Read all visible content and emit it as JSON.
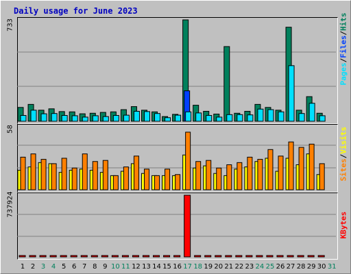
{
  "title": "Daily usage for June 2023",
  "colors": {
    "background": "#c0c0c0",
    "hits": "#00805c",
    "files": "#0040ff",
    "pages": "#00e0ff",
    "visits": "#ffff00",
    "sites": "#ff8000",
    "kbytes": "#ff0000",
    "weekend_day_label": "#00805c",
    "title": "#0000c0"
  },
  "legend": {
    "top": [
      "Pages",
      "/",
      "Files",
      "/",
      "Hits"
    ],
    "middle": [
      "Sites",
      "/",
      "Visits"
    ],
    "bottom": [
      "KBytes"
    ]
  },
  "chart_data": [
    {
      "type": "bar",
      "panel": "hits-files-pages",
      "y_max_label": "733",
      "ylim": [
        0,
        733
      ],
      "grid": true,
      "categories": [
        "1",
        "2",
        "3",
        "4",
        "5",
        "6",
        "7",
        "8",
        "9",
        "10",
        "11",
        "12",
        "13",
        "14",
        "15",
        "16",
        "17",
        "18",
        "19",
        "20",
        "21",
        "22",
        "23",
        "24",
        "25",
        "26",
        "27",
        "28",
        "29",
        "30",
        "31"
      ],
      "weekend_days": [
        "3",
        "4",
        "10",
        "11",
        "17",
        "18",
        "24",
        "25",
        "31"
      ],
      "series": [
        {
          "name": "Hits",
          "values": [
            100,
            122,
            80,
            90,
            70,
            68,
            54,
            58,
            64,
            68,
            84,
            106,
            80,
            68,
            34,
            50,
            733,
            116,
            72,
            52,
            540,
            58,
            72,
            122,
            100,
            80,
            680,
            80,
            178,
            58,
            0
          ]
        },
        {
          "name": "Files",
          "values": [
            0,
            0,
            0,
            0,
            0,
            0,
            0,
            0,
            0,
            0,
            0,
            0,
            0,
            0,
            0,
            0,
            220,
            0,
            0,
            0,
            0,
            0,
            0,
            0,
            0,
            0,
            0,
            0,
            0,
            0,
            0
          ]
        },
        {
          "name": "Pages",
          "values": [
            42,
            80,
            54,
            56,
            42,
            40,
            30,
            40,
            34,
            42,
            44,
            72,
            70,
            56,
            26,
            44,
            68,
            60,
            42,
            30,
            48,
            48,
            46,
            88,
            84,
            68,
            402,
            56,
            130,
            40,
            0
          ]
        }
      ]
    },
    {
      "type": "bar",
      "panel": "sites-visits",
      "y_max_label": "58",
      "ylim": [
        0,
        58
      ],
      "grid": true,
      "categories": [
        "1",
        "2",
        "3",
        "4",
        "5",
        "6",
        "7",
        "8",
        "9",
        "10",
        "11",
        "12",
        "13",
        "14",
        "15",
        "16",
        "17",
        "18",
        "19",
        "20",
        "21",
        "22",
        "23",
        "24",
        "25",
        "26",
        "27",
        "28",
        "29",
        "30",
        "31"
      ],
      "series": [
        {
          "name": "Visits",
          "values": [
            18,
            21,
            25,
            24,
            16,
            18,
            19,
            18,
            16,
            13,
            17,
            24,
            15,
            13,
            13,
            13,
            32,
            20,
            22,
            15,
            13,
            19,
            21,
            26,
            29,
            17,
            29,
            23,
            33,
            14,
            0
          ]
        },
        {
          "name": "Sites",
          "values": [
            30,
            33,
            28,
            24,
            29,
            20,
            33,
            26,
            27,
            13,
            21,
            31,
            19,
            13,
            19,
            14,
            53,
            26,
            27,
            20,
            23,
            25,
            30,
            28,
            37,
            31,
            44,
            39,
            42,
            24,
            0
          ]
        }
      ]
    },
    {
      "type": "bar",
      "panel": "kbytes",
      "y_max_label": "737924",
      "ylim": [
        0,
        737924
      ],
      "grid": true,
      "categories": [
        "1",
        "2",
        "3",
        "4",
        "5",
        "6",
        "7",
        "8",
        "9",
        "10",
        "11",
        "12",
        "13",
        "14",
        "15",
        "16",
        "17",
        "18",
        "19",
        "20",
        "21",
        "22",
        "23",
        "24",
        "25",
        "26",
        "27",
        "28",
        "29",
        "30",
        "31"
      ],
      "series": [
        {
          "name": "KBytes",
          "values": [
            3000,
            3000,
            3000,
            3000,
            3000,
            3000,
            3000,
            3000,
            3000,
            3000,
            3000,
            3000,
            3000,
            3000,
            3000,
            3000,
            737924,
            3000,
            3000,
            3000,
            3000,
            3000,
            3000,
            3000,
            3000,
            3000,
            3000,
            3000,
            3000,
            3000,
            0
          ]
        }
      ]
    }
  ]
}
